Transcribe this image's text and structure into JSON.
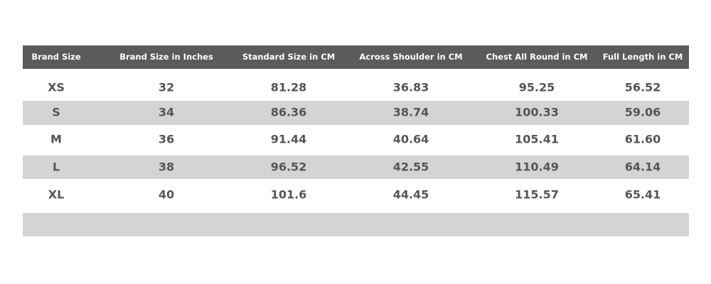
{
  "table": {
    "header": [
      "Brand Size",
      "Brand Size in Inches",
      "Standard Size in CM",
      "Across Shoulder in CM",
      "Chest All Round in CM",
      "Full Length in CM"
    ],
    "rows": [
      [
        "XS",
        "32",
        "81.28",
        "36.83",
        "95.25",
        "56.52"
      ],
      [
        "S",
        "34",
        "86.36",
        "38.74",
        "100.33",
        "59.06"
      ],
      [
        "M",
        "36",
        "91.44",
        "40.64",
        "105.41",
        "61.60"
      ],
      [
        "L",
        "38",
        "96.52",
        "42.55",
        "110.49",
        "64.14"
      ],
      [
        "XL",
        "40",
        "101.6",
        "44.45",
        "115.57",
        "65.41"
      ]
    ]
  }
}
